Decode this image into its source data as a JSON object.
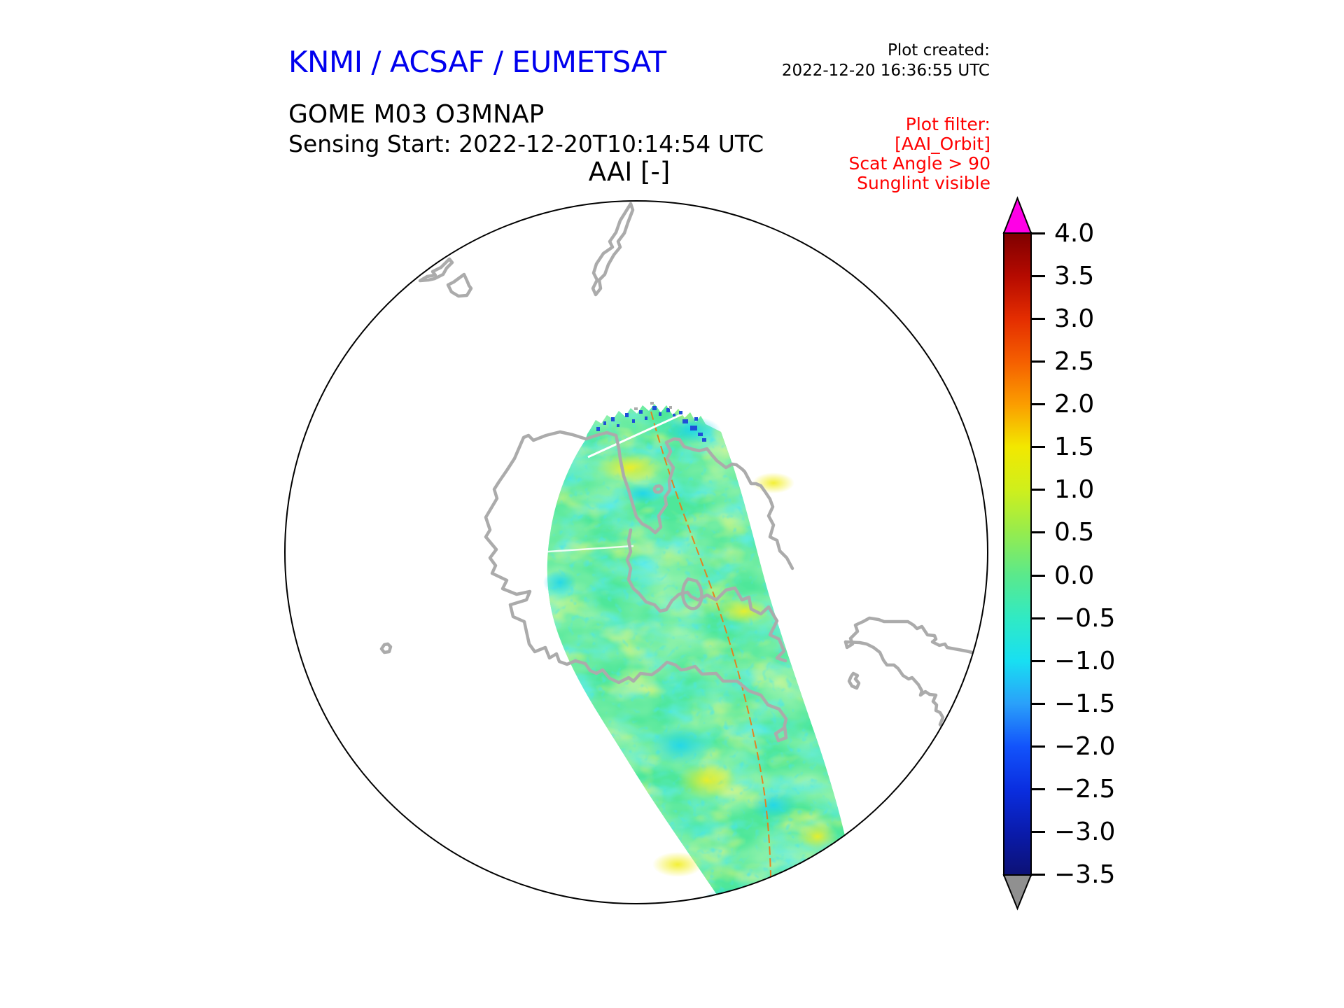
{
  "header": {
    "org_title": "KNMI / ACSAF / EUMETSAT",
    "product_line1": "GOME M03 O3MNAP",
    "product_line2": "Sensing Start: 2022-12-20T10:14:54 UTC",
    "plot_created_label": "Plot created:",
    "plot_created_time": "2022-12-20 16:36:55 UTC",
    "plot_title": "AAI [-]"
  },
  "plot_filter": {
    "lines": [
      "Plot filter:",
      "[AAI_Orbit]",
      "Scat Angle > 90",
      "Sunglint visible"
    ]
  },
  "colorbar": {
    "ticks": [
      "4.0",
      "3.5",
      "3.0",
      "2.5",
      "2.0",
      "1.5",
      "1.0",
      "0.5",
      "0.0",
      "−0.5",
      "−1.0",
      "−1.5",
      "−2.0",
      "−2.5",
      "−3.0",
      "−3.5"
    ],
    "tick_values": [
      4.0,
      3.5,
      3.0,
      2.5,
      2.0,
      1.5,
      1.0,
      0.5,
      0.0,
      -0.5,
      -1.0,
      -1.5,
      -2.0,
      -2.5,
      -3.0,
      -3.5
    ],
    "range_min": -3.5,
    "range_max": 4.0,
    "gradient": [
      "#7f0000",
      "#b50a00",
      "#e42d00",
      "#f55f00",
      "#fb9d00",
      "#f2e800",
      "#cfef1c",
      "#95ec4e",
      "#5ae98c",
      "#30eac4",
      "#18dff2",
      "#2aa0fa",
      "#1253fb",
      "#0a2ee0",
      "#0a1bac",
      "#0c1175"
    ],
    "over_color": "#ff00e6",
    "under_color": "#909090"
  },
  "map": {
    "outline_color": "#000000",
    "coast_color": "#ababab",
    "swath_base_color": "#4ee79a",
    "track_line_color": "#ef7612",
    "scan_gap_color": "#ffffff",
    "speck_color": "#1f4fd8",
    "projection": "south polar view",
    "features": [
      "Antarctica coastline",
      "Antarctic Peninsula",
      "South America southern tip",
      "New Zealand",
      "small sub-antarctic islands"
    ]
  },
  "chart_data": {
    "type": "heatmap",
    "title": "AAI [-]",
    "subtitle": "GOME M03 O3MNAP satellite swath over Antarctica, south polar projection",
    "colorbar_label": "AAI [-]",
    "colorbar_ticks": [
      4.0,
      3.5,
      3.0,
      2.5,
      2.0,
      1.5,
      1.0,
      0.5,
      0.0,
      -0.5,
      -1.0,
      -1.5,
      -2.0,
      -2.5,
      -3.0,
      -3.5
    ],
    "value_range": [
      -3.5,
      4.0
    ],
    "over_range_color": "magenta",
    "under_range_color": "gray",
    "swath_values_summary": "Single orbit swath crossing the pole from top-centre to bottom-centre; AAI mostly between −1.5 and +1.5 (green/cyan) with yellow patches near +1 and scattered dark-blue pixels (−2 to −3.5) along the northern swath edge; thin orange sub-satellite track line visible.",
    "legend_position": "right vertical colorbar with out-of-range arrows"
  }
}
